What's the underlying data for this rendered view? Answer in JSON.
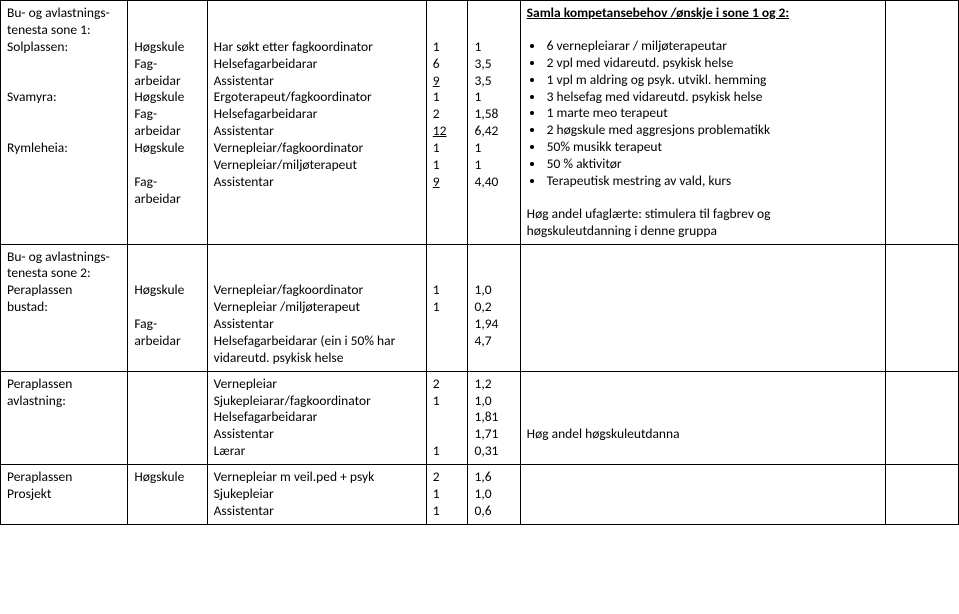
{
  "font_family": "Calibri, Arial, sans-serif",
  "base_fontsize_pt": 11,
  "text_color": "#000000",
  "background_color": "#ffffff",
  "border_color": "#000000",
  "row1": {
    "col1": {
      "l1": "Bu- og avlastnings-",
      "l2": "tenesta sone 1:",
      "solplassen": "Solplassen:",
      "svamyra": "Svamyra:",
      "rymleheia": "Rymleheia:"
    },
    "col2": {
      "hogskule": "Høgskule",
      "fag": "Fag-",
      "arbeidar": "arbeidar"
    },
    "col3": {
      "a": "Har søkt etter fagkoordinator",
      "b": "Helsefagarbeidarar",
      "c": "Assistentar",
      "d": "Ergoterapeut/fagkoordinator",
      "e": "Helsefagarbeidarar",
      "f": "Assistentar",
      "g": "Vernepleiar/fagkoordinator",
      "h": "Vernepleiar/miljøterapeut",
      "i": "Assistentar"
    },
    "col4": {
      "a": "1",
      "b": "6",
      "c": "9",
      "d": "1",
      "e": "2",
      "f": "12",
      "g": "1",
      "h": "1",
      "i": "9"
    },
    "col5": {
      "a": "1",
      "b": "3,5",
      "c": "3,5",
      "d": "1",
      "e": "1,58",
      "f": "6,42",
      "g": "1",
      "h": "1",
      "i": "4,40"
    },
    "col6": {
      "heading": "Samla kompetansebehov /ønskje i sone 1 og 2:",
      "bullets": {
        "b1": "6 vernepleiarar / miljøterapeutar",
        "b2": "2 vpl med vidareutd. psykisk helse",
        "b3": "1 vpl m aldring og psyk. utvikl. hemming",
        "b4": "3 helsefag med vidareutd. psykisk helse",
        "b5": "1 marte meo terapeut",
        "b6": "2 høgskule med aggresjons problematikk",
        "b7": "50% musikk terapeut",
        "b8": "50 % aktivitør",
        "b9": "Terapeutisk mestring av vald, kurs"
      },
      "footer1": "Høg andel ufaglærte: stimulera til fagbrev og",
      "footer2": "høgskuleutdanning i denne gruppa"
    }
  },
  "row2": {
    "col1": {
      "l1": "Bu- og avlastnings-",
      "l2": "tenesta sone 2:",
      "peraplassen": "Peraplassen",
      "bustad": "bustad:"
    },
    "col3": {
      "a": "Vernepleiar/fagkoordinator",
      "b": "Vernepleiar /miljøterapeut",
      "c": "Assistentar",
      "d": "Helsefagarbeidarar (ein i 50% har",
      "e": "vidareutd. psykisk helse"
    },
    "col4": {
      "a": "1",
      "b": "1"
    },
    "col5": {
      "a": "1,0",
      "b": "0,2",
      "c": "1,94",
      "d": "4,7"
    }
  },
  "row3": {
    "col1": {
      "l1": "Peraplassen",
      "l2": "avlastning:"
    },
    "col3": {
      "a": "Vernepleiar",
      "b": "Sjukepleiarar/fagkoordinator",
      "c": "Helsefagarbeidarar",
      "d": "Assistentar",
      "e": "Lærar"
    },
    "col4": {
      "a": "2",
      "b": "1",
      "e": "1"
    },
    "col5": {
      "a": "1,2",
      "b": "1,0",
      "c": "1,81",
      "d": "1,71",
      "e": "0,31"
    },
    "col6": {
      "text": "Høg andel  høgskuleutdanna"
    }
  },
  "row4": {
    "col1": {
      "l1": "Peraplassen",
      "l2": "Prosjekt"
    },
    "col2": {
      "hogskule": "Høgskule"
    },
    "col3": {
      "a": "Vernepleiar m veil.ped + psyk",
      "b": "Sjukepleiar",
      "c": "Assistentar"
    },
    "col4": {
      "a": "2",
      "b": "1",
      "c": "1"
    },
    "col5": {
      "a": "1,6",
      "b": "1,0",
      "c": "0,6"
    }
  }
}
